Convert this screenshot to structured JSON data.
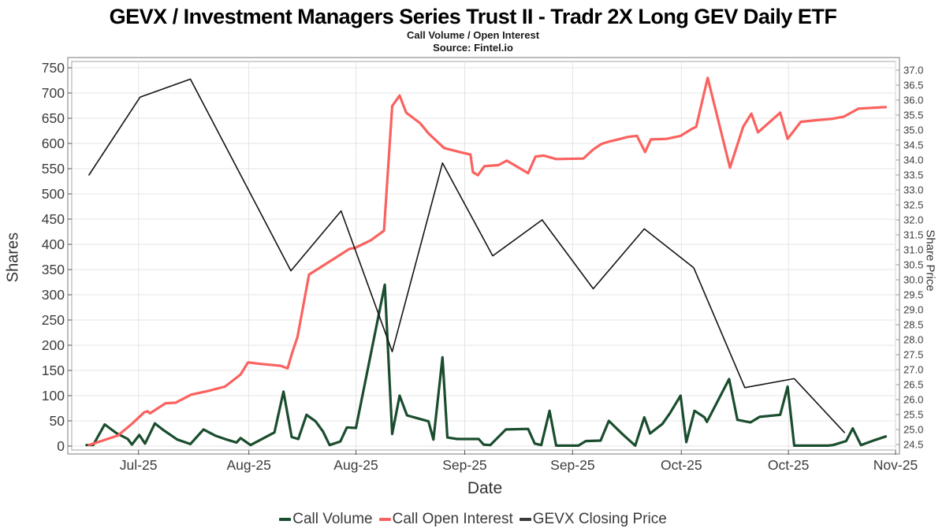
{
  "header": {
    "title": "GEVX / Investment Managers Series Trust II - Tradr 2X Long GEV Daily ETF",
    "subtitle": "Call Volume / Open Interest",
    "source": "Source: Fintel.io"
  },
  "chart_data": {
    "type": "line",
    "title": "GEVX / Investment Managers Series Trust II - Tradr 2X Long GEV Daily ETF",
    "subtitle": "Call Volume / Open Interest",
    "source": "Source: Fintel.io",
    "grid": true,
    "legend_position": "bottom",
    "x_axis": {
      "label": "Date",
      "ticks": [
        {
          "label": "Jul-25",
          "f": 0.081
        },
        {
          "label": "Aug-25",
          "f": 0.215
        },
        {
          "label": "Aug-25",
          "f": 0.345
        },
        {
          "label": "Sep-25",
          "f": 0.477
        },
        {
          "label": "Sep-25",
          "f": 0.608
        },
        {
          "label": "Oct-25",
          "f": 0.74
        },
        {
          "label": "Oct-25",
          "f": 0.87
        },
        {
          "label": "Nov-25",
          "f": 1.0
        }
      ]
    },
    "y_left": {
      "label": "Shares",
      "min": 0,
      "max": 750,
      "step": 50
    },
    "y_right": {
      "label": "Share Price",
      "min": 24.5,
      "max": 37.0,
      "step": 0.5
    },
    "series": [
      {
        "name": "Call Volume",
        "axis": "left",
        "color": "#1a4d2e",
        "width": 3.2,
        "points": [
          [
            0.018,
            2
          ],
          [
            0.026,
            2
          ],
          [
            0.04,
            43
          ],
          [
            0.054,
            26
          ],
          [
            0.068,
            14
          ],
          [
            0.073,
            3
          ],
          [
            0.082,
            22
          ],
          [
            0.089,
            5
          ],
          [
            0.101,
            45
          ],
          [
            0.111,
            32
          ],
          [
            0.121,
            21
          ],
          [
            0.128,
            13
          ],
          [
            0.144,
            4
          ],
          [
            0.16,
            33
          ],
          [
            0.174,
            21
          ],
          [
            0.188,
            13
          ],
          [
            0.2,
            7
          ],
          [
            0.205,
            16
          ],
          [
            0.217,
            2
          ],
          [
            0.246,
            27
          ],
          [
            0.257,
            108
          ],
          [
            0.267,
            18
          ],
          [
            0.275,
            14
          ],
          [
            0.285,
            62
          ],
          [
            0.296,
            49
          ],
          [
            0.305,
            29
          ],
          [
            0.313,
            2
          ],
          [
            0.326,
            9
          ],
          [
            0.334,
            37
          ],
          [
            0.345,
            36
          ],
          [
            0.38,
            320
          ],
          [
            0.389,
            24
          ],
          [
            0.398,
            100
          ],
          [
            0.407,
            61
          ],
          [
            0.433,
            49
          ],
          [
            0.439,
            13
          ],
          [
            0.45,
            176
          ],
          [
            0.456,
            17
          ],
          [
            0.468,
            14
          ],
          [
            0.494,
            14
          ],
          [
            0.5,
            3
          ],
          [
            0.508,
            2
          ],
          [
            0.527,
            33
          ],
          [
            0.554,
            34
          ],
          [
            0.562,
            5
          ],
          [
            0.57,
            2
          ],
          [
            0.58,
            70
          ],
          [
            0.588,
            1
          ],
          [
            0.615,
            1
          ],
          [
            0.624,
            10
          ],
          [
            0.642,
            11
          ],
          [
            0.652,
            50
          ],
          [
            0.669,
            23
          ],
          [
            0.684,
            1
          ],
          [
            0.695,
            57
          ],
          [
            0.702,
            25
          ],
          [
            0.717,
            44
          ],
          [
            0.726,
            65
          ],
          [
            0.739,
            100
          ],
          [
            0.746,
            8
          ],
          [
            0.756,
            70
          ],
          [
            0.768,
            57
          ],
          [
            0.771,
            48
          ],
          [
            0.798,
            133
          ],
          [
            0.808,
            52
          ],
          [
            0.824,
            47
          ],
          [
            0.835,
            58
          ],
          [
            0.86,
            62
          ],
          [
            0.869,
            118
          ],
          [
            0.877,
            1
          ],
          [
            0.918,
            1
          ],
          [
            0.924,
            2
          ],
          [
            0.94,
            10
          ],
          [
            0.948,
            35
          ],
          [
            0.958,
            2
          ],
          [
            0.975,
            12
          ],
          [
            0.988,
            19
          ]
        ]
      },
      {
        "name": "Call Open Interest",
        "axis": "left",
        "color": "#fa625f",
        "width": 3.2,
        "points": [
          [
            0.021,
            2
          ],
          [
            0.056,
            21
          ],
          [
            0.073,
            44
          ],
          [
            0.088,
            67
          ],
          [
            0.092,
            69
          ],
          [
            0.095,
            65
          ],
          [
            0.114,
            85
          ],
          [
            0.126,
            86
          ],
          [
            0.145,
            102
          ],
          [
            0.165,
            109
          ],
          [
            0.186,
            118
          ],
          [
            0.205,
            142
          ],
          [
            0.214,
            166
          ],
          [
            0.229,
            163
          ],
          [
            0.254,
            159
          ],
          [
            0.262,
            154
          ],
          [
            0.267,
            182
          ],
          [
            0.274,
            216
          ],
          [
            0.288,
            340
          ],
          [
            0.315,
            368
          ],
          [
            0.337,
            391
          ],
          [
            0.344,
            393
          ],
          [
            0.363,
            408
          ],
          [
            0.379,
            427
          ],
          [
            0.389,
            674
          ],
          [
            0.398,
            695
          ],
          [
            0.406,
            661
          ],
          [
            0.423,
            640
          ],
          [
            0.433,
            620
          ],
          [
            0.452,
            591
          ],
          [
            0.471,
            583
          ],
          [
            0.484,
            578
          ],
          [
            0.487,
            543
          ],
          [
            0.493,
            537
          ],
          [
            0.501,
            555
          ],
          [
            0.518,
            557
          ],
          [
            0.528,
            566
          ],
          [
            0.554,
            541
          ],
          [
            0.563,
            574
          ],
          [
            0.573,
            576
          ],
          [
            0.588,
            569
          ],
          [
            0.621,
            570
          ],
          [
            0.633,
            588
          ],
          [
            0.643,
            599
          ],
          [
            0.653,
            604
          ],
          [
            0.666,
            609
          ],
          [
            0.675,
            613
          ],
          [
            0.686,
            615
          ],
          [
            0.696,
            583
          ],
          [
            0.703,
            608
          ],
          [
            0.722,
            609
          ],
          [
            0.739,
            615
          ],
          [
            0.753,
            629
          ],
          [
            0.758,
            633
          ],
          [
            0.772,
            730
          ],
          [
            0.799,
            552
          ],
          [
            0.815,
            633
          ],
          [
            0.825,
            659
          ],
          [
            0.833,
            622
          ],
          [
            0.86,
            661
          ],
          [
            0.869,
            609
          ],
          [
            0.885,
            643
          ],
          [
            0.903,
            646
          ],
          [
            0.924,
            649
          ],
          [
            0.937,
            653
          ],
          [
            0.955,
            669
          ],
          [
            0.988,
            672
          ]
        ]
      },
      {
        "name": "GEVX Closing Price",
        "axis": "right",
        "color": "#141414",
        "width": 1.6,
        "points": [
          [
            0.021,
            33.5
          ],
          [
            0.083,
            36.1
          ],
          [
            0.144,
            36.7
          ],
          [
            0.266,
            30.3
          ],
          [
            0.327,
            32.3
          ],
          [
            0.389,
            27.6
          ],
          [
            0.45,
            33.9
          ],
          [
            0.511,
            30.8
          ],
          [
            0.571,
            32.0
          ],
          [
            0.633,
            29.7
          ],
          [
            0.695,
            31.7
          ],
          [
            0.755,
            30.4
          ],
          [
            0.817,
            26.4
          ],
          [
            0.877,
            26.7
          ],
          [
            0.938,
            24.9
          ]
        ]
      }
    ]
  }
}
